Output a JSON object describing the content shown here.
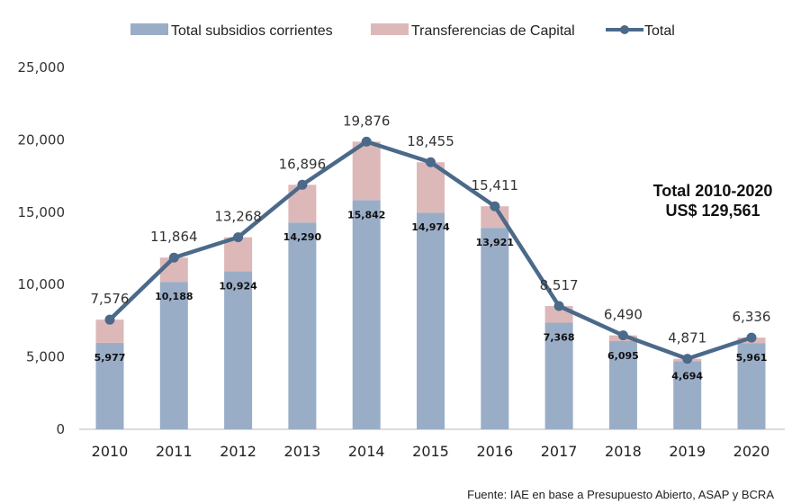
{
  "chart_data": {
    "type": "bar",
    "subtype": "stacked-bar-with-line",
    "title": "",
    "xlabel": "",
    "ylabel": "",
    "ylim": [
      0,
      25000
    ],
    "yticks": [
      0,
      5000,
      10000,
      15000,
      20000,
      25000
    ],
    "ytick_labels": [
      "0",
      "5,000",
      "10,000",
      "15,000",
      "20,000",
      "25,000"
    ],
    "grid": false,
    "legend_position": "top-center",
    "categories": [
      "2010",
      "2011",
      "2012",
      "2013",
      "2014",
      "2015",
      "2016",
      "2017",
      "2018",
      "2019",
      "2020"
    ],
    "series": [
      {
        "name": "Total subsidios corrientes",
        "type": "bar",
        "color": "#9aadc7",
        "values": [
          5977,
          10188,
          10924,
          14290,
          15842,
          14974,
          13921,
          7368,
          6095,
          4694,
          5961
        ],
        "labels": [
          "5,977",
          "10,188",
          "10,924",
          "14,290",
          "15,842",
          "14,974",
          "13,921",
          "7,368",
          "6,095",
          "4,694",
          "5,961"
        ]
      },
      {
        "name": "Transferencias de Capital",
        "type": "bar",
        "color": "#ddb8b8",
        "values": [
          1599,
          1676,
          2344,
          2606,
          4034,
          3481,
          1490,
          1149,
          395,
          177,
          375
        ]
      },
      {
        "name": "Total",
        "type": "line",
        "color": "#4b6a8a",
        "values": [
          7576,
          11864,
          13268,
          16896,
          19876,
          18455,
          15411,
          8517,
          6490,
          4871,
          6336
        ],
        "labels": [
          "7,576",
          "11,864",
          "13,268",
          "16,896",
          "19,876",
          "18,455",
          "15,411",
          "8,517",
          "6,490",
          "4,871",
          "6,336"
        ]
      }
    ],
    "annotations": [
      {
        "line1": "Total  2010-2020",
        "line2": "US$ 129,561"
      }
    ],
    "source": "Fuente: IAE en base a Presupuesto Abierto, ASAP y BCRA"
  }
}
